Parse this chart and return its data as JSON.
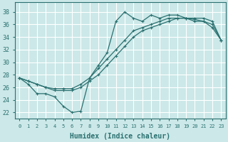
{
  "xlabel": "Humidex (Indice chaleur)",
  "bg_color": "#cce8e8",
  "grid_color": "#ffffff",
  "line_color": "#2a7070",
  "xlim": [
    -0.5,
    23.5
  ],
  "ylim": [
    21.0,
    39.5
  ],
  "yticks": [
    22,
    24,
    26,
    28,
    30,
    32,
    34,
    36,
    38
  ],
  "xticks": [
    0,
    1,
    2,
    3,
    4,
    5,
    6,
    7,
    8,
    9,
    10,
    11,
    12,
    13,
    14,
    15,
    16,
    17,
    18,
    19,
    20,
    21,
    22,
    23
  ],
  "line1_x": [
    0,
    1,
    2,
    3,
    4,
    5,
    6,
    7,
    8,
    9,
    10,
    11,
    12,
    13,
    14,
    15,
    16,
    17,
    18,
    19,
    20,
    21,
    22,
    23
  ],
  "line1_y": [
    27.5,
    26.5,
    25.0,
    25.0,
    24.5,
    23.0,
    22.0,
    22.2,
    27.5,
    29.5,
    31.5,
    36.5,
    38.0,
    37.0,
    36.5,
    37.5,
    37.0,
    37.5,
    37.5,
    37.0,
    36.5,
    36.5,
    35.5,
    33.5
  ],
  "line2_x": [
    0,
    1,
    2,
    3,
    4,
    5,
    6,
    7,
    8,
    9,
    10,
    11,
    12,
    13,
    14,
    15,
    16,
    17,
    18,
    19,
    20,
    21,
    22,
    23
  ],
  "line2_y": [
    27.5,
    27.0,
    26.5,
    26.0,
    25.5,
    25.5,
    25.5,
    26.0,
    27.0,
    28.0,
    29.5,
    31.0,
    32.5,
    34.0,
    35.0,
    35.5,
    36.0,
    36.5,
    37.0,
    37.0,
    37.0,
    37.0,
    36.5,
    33.5
  ],
  "line3_x": [
    0,
    1,
    2,
    3,
    4,
    5,
    6,
    7,
    8,
    9,
    10,
    11,
    12,
    13,
    14,
    15,
    16,
    17,
    18,
    19,
    20,
    21,
    22,
    23
  ],
  "line3_y": [
    27.5,
    27.0,
    26.5,
    26.0,
    25.8,
    25.8,
    25.8,
    26.5,
    27.5,
    29.0,
    30.5,
    32.0,
    33.5,
    35.0,
    35.5,
    36.0,
    36.5,
    37.0,
    37.0,
    37.0,
    36.8,
    36.5,
    36.0,
    33.5
  ]
}
